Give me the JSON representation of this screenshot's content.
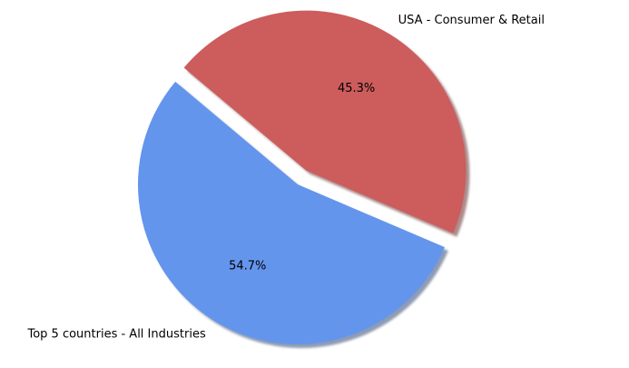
{
  "chart_data": {
    "type": "pie",
    "title": "",
    "slices": [
      {
        "label": "Top 5 countries - All Industries",
        "value": 54.7,
        "pct_label": "54.7%",
        "color": "#6495ED",
        "exploded": false
      },
      {
        "label": "USA - Consumer & Retail",
        "value": 45.3,
        "pct_label": "45.3%",
        "color": "#CD5C5C",
        "exploded": true
      }
    ],
    "shadow": true,
    "start_angle_deg": 140,
    "direction": "counterclockwise"
  }
}
